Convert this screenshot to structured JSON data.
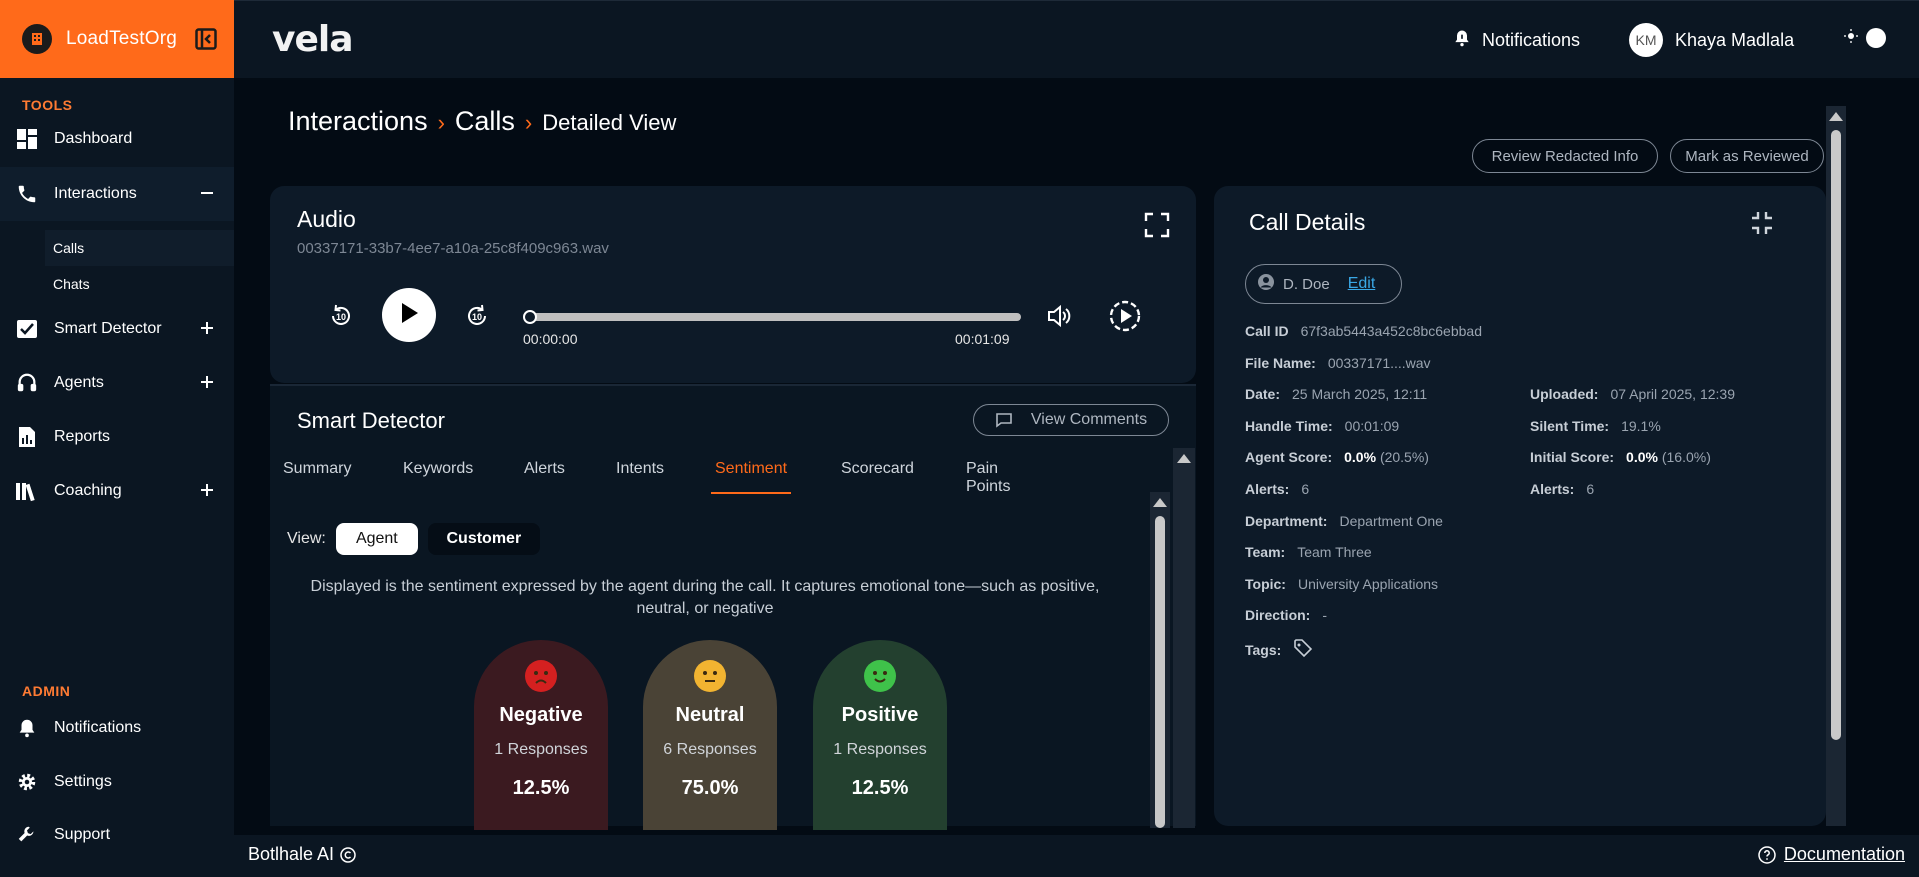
{
  "sidebar": {
    "org_name": "LoadTestOrg",
    "tools_label": "TOOLS",
    "admin_label": "ADMIN",
    "items": [
      {
        "label": "Dashboard"
      },
      {
        "label": "Interactions",
        "toggle": "minus"
      },
      {
        "label": "Smart Detector",
        "toggle": "plus"
      },
      {
        "label": "Agents",
        "toggle": "plus"
      },
      {
        "label": "Reports"
      },
      {
        "label": "Coaching",
        "toggle": "plus"
      }
    ],
    "sub_items": [
      {
        "label": "Calls"
      },
      {
        "label": "Chats"
      }
    ],
    "admin_items": [
      {
        "label": "Notifications"
      },
      {
        "label": "Settings"
      },
      {
        "label": "Support"
      }
    ]
  },
  "header": {
    "brand": "vela",
    "notifications_label": "Notifications",
    "user_initials": "KM",
    "user_name": "Khaya Madlala"
  },
  "breadcrumb": {
    "first": "Interactions",
    "second": "Calls",
    "current": "Detailed View"
  },
  "actions": {
    "review_redacted": "Review Redacted Info",
    "mark_reviewed": "Mark as Reviewed"
  },
  "audio": {
    "title": "Audio",
    "file_name": "00337171-33b7-4ee7-a10a-25c8f409c963.wav",
    "current_time": "00:00:00",
    "duration": "00:01:09",
    "progress": 0
  },
  "smart_detector": {
    "title": "Smart Detector",
    "view_comments": "View Comments",
    "tabs": [
      "Summary",
      "Keywords",
      "Alerts",
      "Intents",
      "Sentiment",
      "Scorecard",
      "Pain Points"
    ],
    "active_tab": "Sentiment",
    "view_label": "View:",
    "view_options": [
      "Agent",
      "Customer"
    ],
    "description": "Displayed is the sentiment expressed by the agent during the call. It captures emotional tone—such as positive, neutral, or negative",
    "sentiments": [
      {
        "name": "Negative",
        "responses": "1 Responses",
        "percent": "12.5%",
        "color": "#3b1a20",
        "face_color": "#d42020"
      },
      {
        "name": "Neutral",
        "responses": "6 Responses",
        "percent": "75.0%",
        "color": "#4a4336",
        "face_color": "#f2b431"
      },
      {
        "name": "Positive",
        "responses": "1 Responses",
        "percent": "12.5%",
        "color": "#23402f",
        "face_color": "#3fc24a"
      }
    ]
  },
  "details": {
    "title": "Call Details",
    "assignee": "D. Doe",
    "edit_label": "Edit",
    "call_id_label": "Call ID",
    "call_id": "67f3ab5443a452c8bc6ebbad",
    "file_name_label": "File Name:",
    "file_name": "00337171....wav",
    "date_label": "Date:",
    "date": "25 March 2025, 12:11",
    "uploaded_label": "Uploaded:",
    "uploaded": "07 April 2025, 12:39",
    "handle_label": "Handle Time:",
    "handle": "00:01:09",
    "silent_label": "Silent Time:",
    "silent": "19.1%",
    "agent_score_label": "Agent Score:",
    "agent_score": "0.0%",
    "agent_score_extra": "(20.5%)",
    "initial_score_label": "Initial Score:",
    "initial_score": "0.0%",
    "initial_score_extra": "(16.0%)",
    "alerts_label": "Alerts:",
    "alerts": "6",
    "alerts2_label": "Alerts:",
    "alerts2": "6",
    "department_label": "Department:",
    "department": "Department One",
    "team_label": "Team:",
    "team": "Team Three",
    "topic_label": "Topic:",
    "topic": "University Applications",
    "direction_label": "Direction:",
    "direction": "-",
    "tags_label": "Tags:"
  },
  "footer": {
    "company": "Botlhale AI",
    "documentation": "Documentation"
  }
}
